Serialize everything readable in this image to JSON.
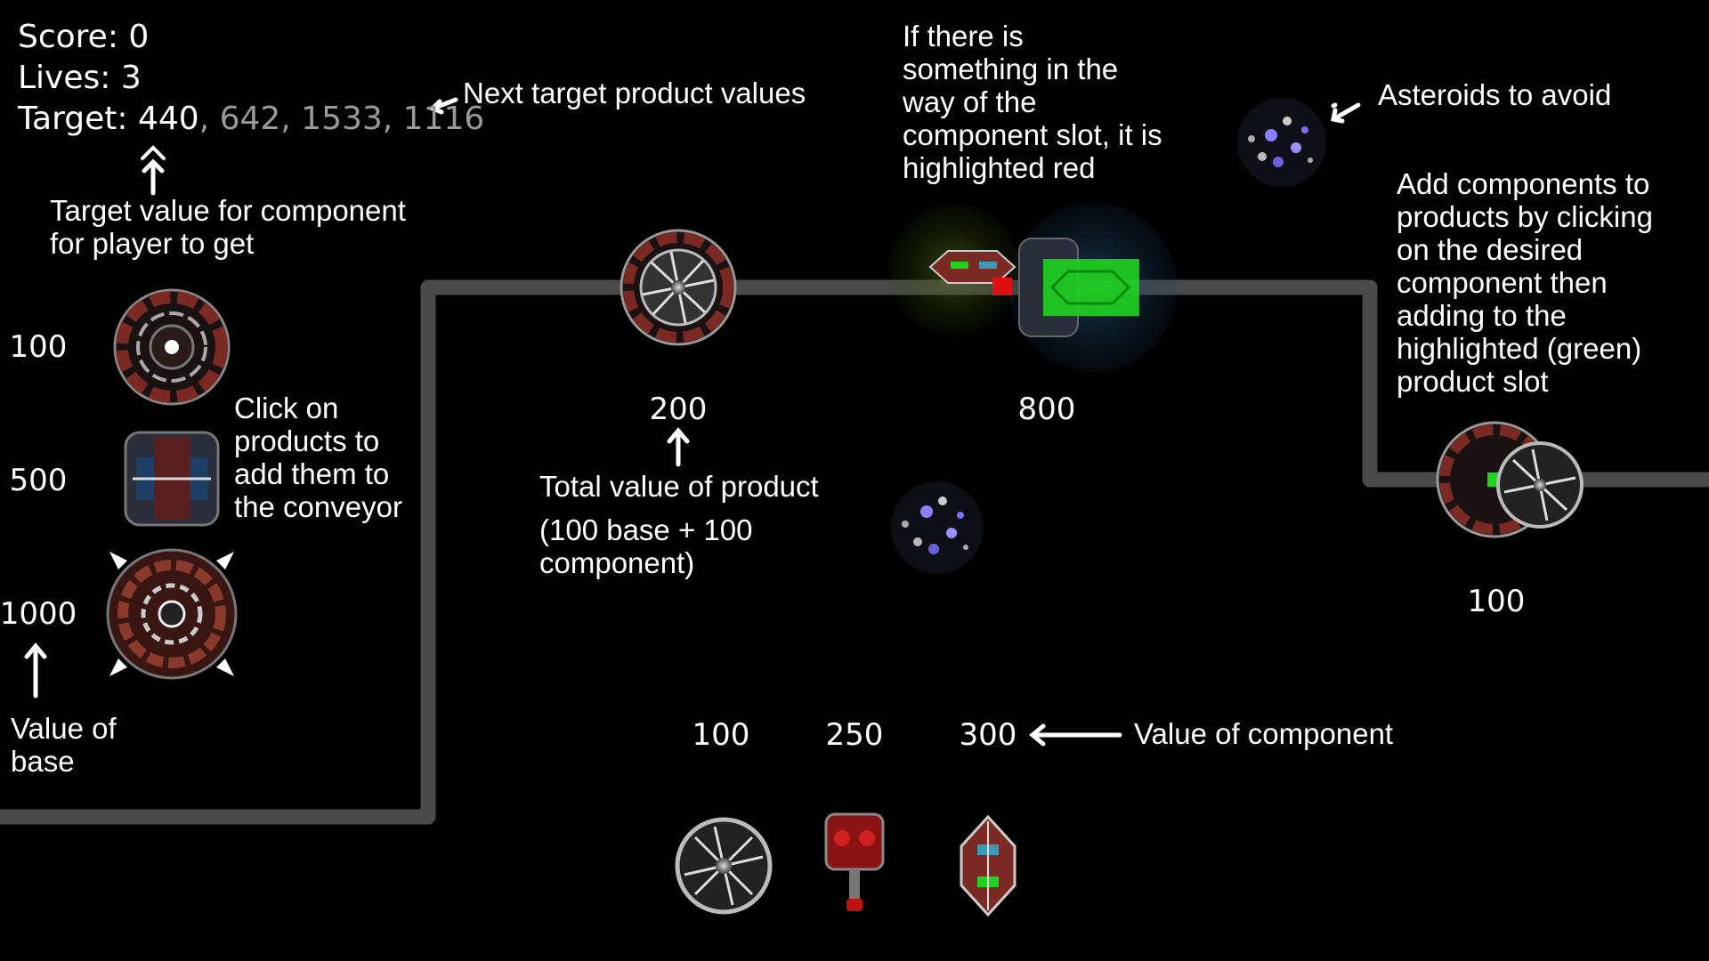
{
  "hud": {
    "score_label": "Score:",
    "score": "0",
    "lives_label": "Lives:",
    "lives": "3",
    "target_label": "Target:",
    "target_current": "440",
    "target_next": ", 642, 1533, 1116"
  },
  "annotations": {
    "next_target": "Next target product values",
    "target_value_line1": "Target value for component",
    "target_value_line2": "for player to get",
    "click_products_1": "Click on",
    "click_products_2": "products to",
    "click_products_3": "add them to",
    "click_products_4": "the conveyor",
    "value_of_base_1": "Value of",
    "value_of_base_2": "base",
    "total_value_1": "Total value of product",
    "total_value_2": "(100 base + 100",
    "total_value_3": "component)",
    "blocked_1": "If there is",
    "blocked_2": "something in the",
    "blocked_3": "way of the",
    "blocked_4": "component slot, it is",
    "blocked_5": "highlighted red",
    "asteroids": "Asteroids to avoid",
    "add_components_1": "Add components to",
    "add_components_2": "products by clicking",
    "add_components_3": "on the desired",
    "add_components_4": "component then",
    "add_components_5": "adding to the",
    "add_components_6": "highlighted (green)",
    "add_components_7": "product slot",
    "value_of_component": "Value of component"
  },
  "bases": [
    {
      "value": "100",
      "icon": "round-base-icon"
    },
    {
      "value": "500",
      "icon": "square-base-icon"
    },
    {
      "value": "1000",
      "icon": "cross-base-icon"
    }
  ],
  "conveyor_products": [
    {
      "value": "200"
    },
    {
      "value": "800"
    },
    {
      "value": "100"
    }
  ],
  "components": [
    {
      "value": "100",
      "icon": "turbine-component-icon"
    },
    {
      "value": "250",
      "icon": "red-pod-component-icon"
    },
    {
      "value": "300",
      "icon": "hull-component-icon"
    }
  ],
  "colors": {
    "background": "#000000",
    "conveyor": "#4a4a4a",
    "slot_ok": "#1fd41f",
    "slot_blocked": "#e01010",
    "hull_red": "#7a2a22",
    "target_next": "#9a9a9a"
  }
}
